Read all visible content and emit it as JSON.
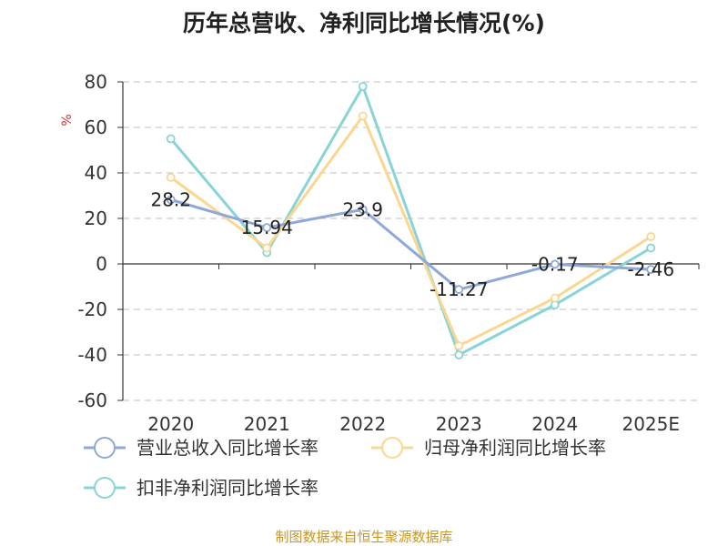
{
  "chart_data": {
    "type": "line",
    "title": "历年总营收、净利同比增长情况(%)",
    "ylabel": "%",
    "categories": [
      "2020",
      "2021",
      "2022",
      "2023",
      "2024",
      "2025E"
    ],
    "ylim": [
      -60,
      80
    ],
    "yticks": [
      80,
      60,
      40,
      20,
      0,
      -20,
      -40,
      -60
    ],
    "grid": true,
    "legend_position": "bottom",
    "series": [
      {
        "name": "营业总收入同比增长率",
        "color": "#8fa8d8",
        "values": [
          28.2,
          15.94,
          23.9,
          -11.27,
          -0.17,
          -2.46
        ],
        "labels": [
          "28.2",
          "15.94",
          "23.9",
          "-11.27",
          "-0.17",
          "-2.46"
        ]
      },
      {
        "name": "归母净利润同比增长率",
        "color": "#fad690",
        "values": [
          38,
          7,
          65,
          -36,
          -15,
          12
        ]
      },
      {
        "name": "扣非净利润同比增长率",
        "color": "#88d4d4",
        "values": [
          55,
          5,
          78,
          -40,
          -18,
          7
        ]
      }
    ]
  },
  "footer": "制图数据来自恒生聚源数据库"
}
